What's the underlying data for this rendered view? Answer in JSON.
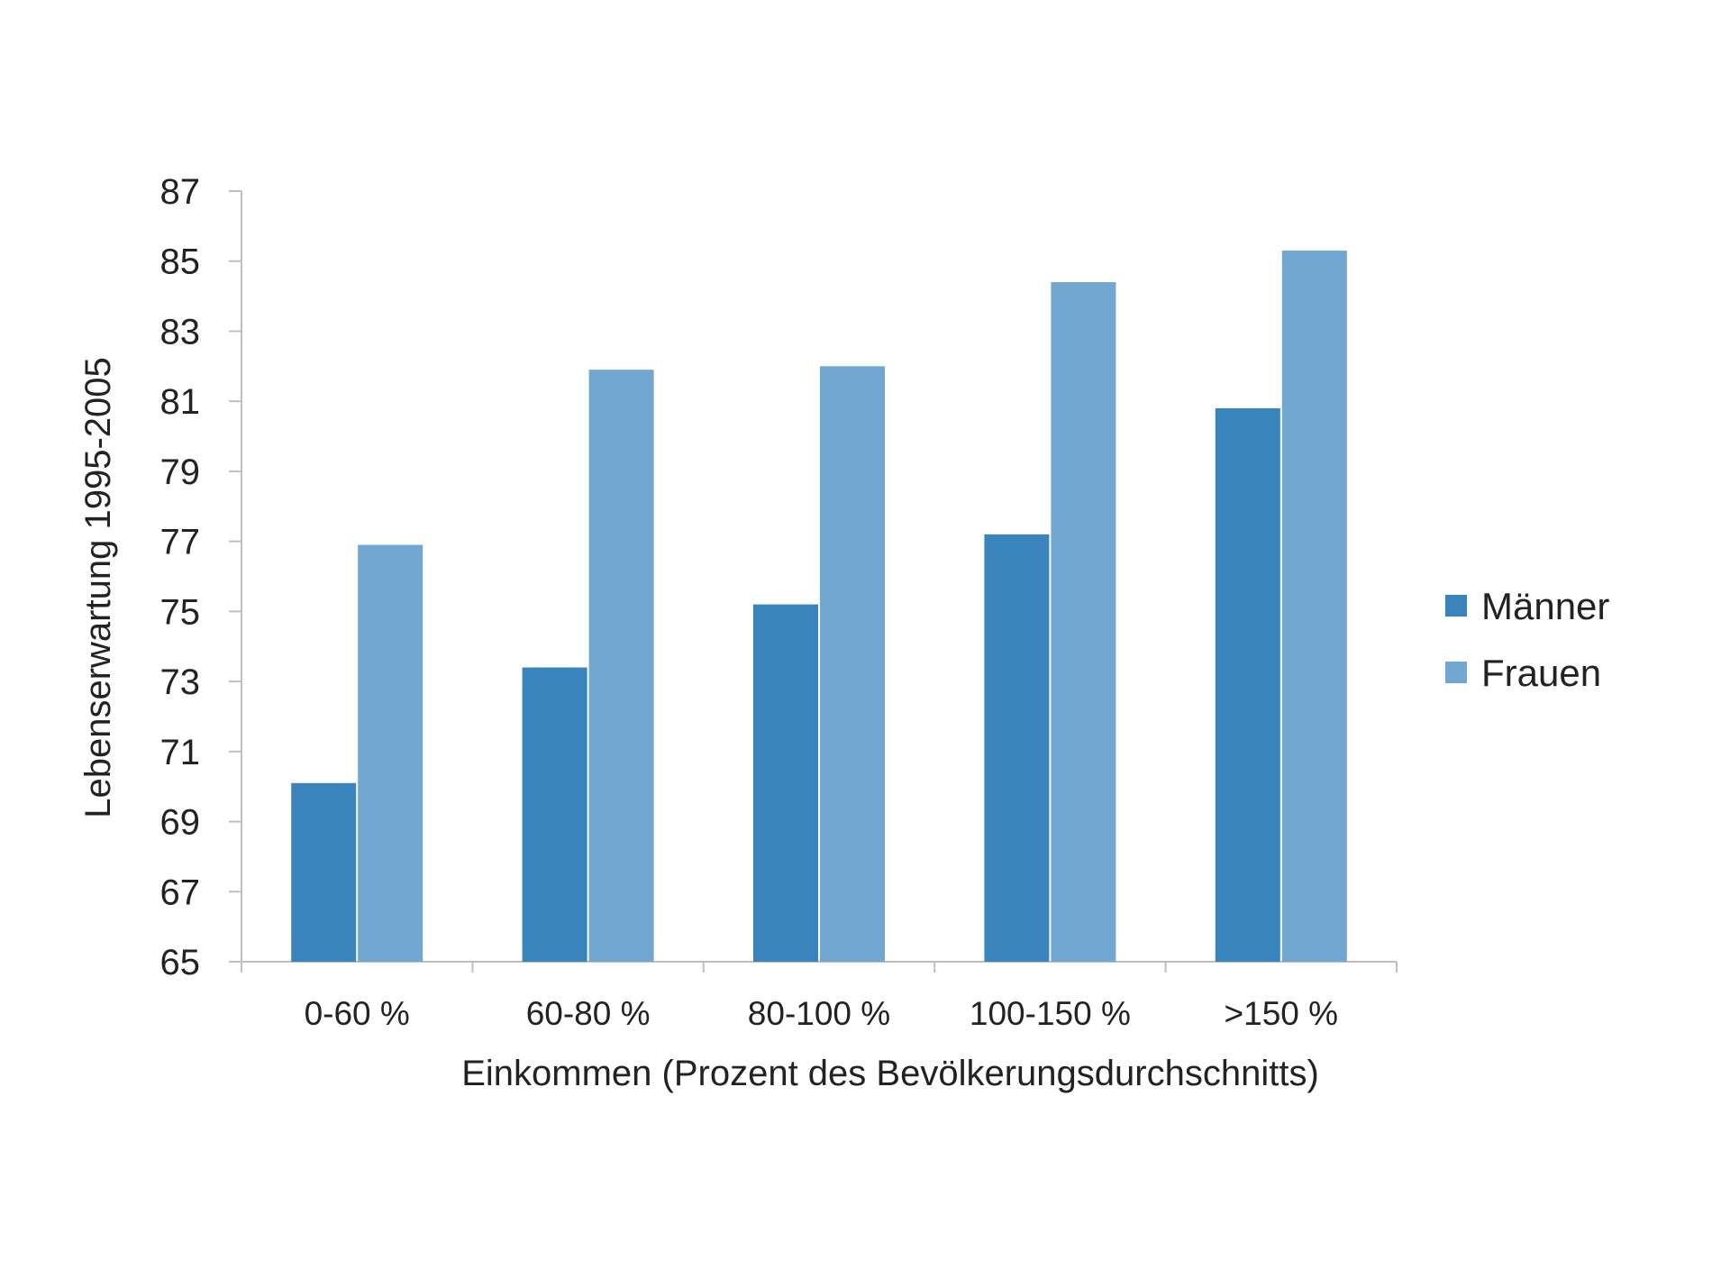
{
  "chart_data": {
    "type": "bar",
    "title": "",
    "xlabel": "Einkommen (Prozent des Bevölkerungsdurchschnitts)",
    "ylabel": "Lebenserwartung 1995-2005",
    "categories": [
      "0-60 %",
      "60-80 %",
      "80-100 %",
      "100-150 %",
      ">150 %"
    ],
    "series": [
      {
        "name": "Männer",
        "color": "#3a84bd",
        "values": [
          70.1,
          73.4,
          75.2,
          77.2,
          80.8
        ]
      },
      {
        "name": "Frauen",
        "color": "#72a7d2",
        "values": [
          76.9,
          81.9,
          82.0,
          84.4,
          85.3
        ]
      }
    ],
    "ylim": [
      65,
      87
    ],
    "yticks": [
      65,
      67,
      69,
      71,
      73,
      75,
      77,
      79,
      81,
      83,
      85,
      87
    ],
    "grid": false,
    "legend": "right",
    "axis_color": "#bfbfbf"
  }
}
